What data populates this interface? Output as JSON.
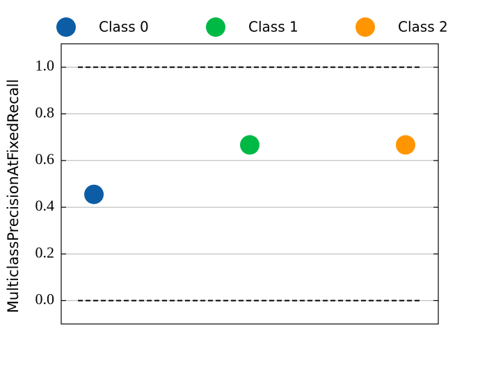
{
  "chart_data": {
    "type": "scatter",
    "y_label": "MulticlassPrecisionAtFixedRecall",
    "xlim": [
      -0.21,
      2.21
    ],
    "ylim": [
      -0.1,
      1.1
    ],
    "yticks": [
      {
        "value": 0,
        "label": "0.0"
      },
      {
        "value": 0.2,
        "label": "0.2"
      },
      {
        "value": 0.4,
        "label": "0.4"
      },
      {
        "value": 0.6,
        "label": "0.6"
      },
      {
        "value": 0.8,
        "label": "0.8"
      },
      {
        "value": 1,
        "label": "1.0"
      }
    ],
    "grid": true,
    "hlines": [
      0,
      1
    ],
    "legend": "top",
    "series": [
      {
        "name": "Class 0",
        "color": "#0c5da5",
        "x": [
          0
        ],
        "values": [
          0.455
        ]
      },
      {
        "name": "Class 1",
        "color": "#00b945",
        "x": [
          1
        ],
        "values": [
          0.667
        ]
      },
      {
        "name": "Class 2",
        "color": "#ff9500",
        "x": [
          2
        ],
        "values": [
          0.667
        ]
      }
    ]
  }
}
